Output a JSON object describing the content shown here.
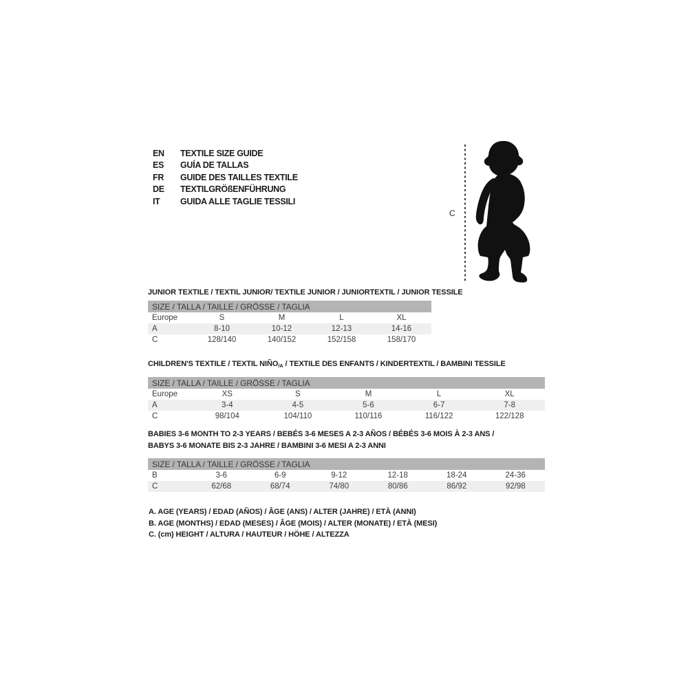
{
  "colors": {
    "background": "#ffffff",
    "band_bg": "#b4b4b4",
    "alt_row_bg": "#efefef",
    "title_text": "#1c1c1c",
    "table_text": "#3c3c3c",
    "silhouette": "#111111"
  },
  "languages": {
    "items": [
      {
        "code": "EN",
        "label": "TEXTILE SIZE GUIDE"
      },
      {
        "code": "ES",
        "label": "GUÍA DE TALLAS"
      },
      {
        "code": "FR",
        "label": "GUIDE DES TAILLES TEXTILE"
      },
      {
        "code": "DE",
        "label": "TEXTILGRÖßENFÜHRUNG"
      },
      {
        "code": "IT",
        "label": "GUIDA ALLE TAGLIE TESSILI"
      }
    ]
  },
  "figure": {
    "silhouette": "toddler-silhouette",
    "height_label": "C"
  },
  "size_tables": [
    {
      "name": "size-table-junior",
      "title_lines": [
        [
          {
            "text": "JUNIOR TEXTILE / TEXTIL JUNIOR/ TEXTILE JUNIOR / JUNIORTEXTIL / JUNIOR TESSILE"
          }
        ]
      ],
      "band_label": "SIZE / TALLA / TAILLE / GRÖSSE / TAGLIA",
      "rows": [
        {
          "label": "Europe",
          "cells": [
            "S",
            "M",
            "L",
            "XL"
          ]
        },
        {
          "label": "A",
          "cells": [
            "8-10",
            "10-12",
            "12-13",
            "14-16"
          ]
        },
        {
          "label": "C",
          "cells": [
            "128/140",
            "140/152",
            "152/158",
            "158/170"
          ]
        }
      ]
    },
    {
      "name": "size-table-children",
      "title_lines": [
        [
          {
            "text": "CHILDREN'S TEXTILE / TEXTIL NIÑO"
          },
          {
            "text": "/A",
            "sub": true
          },
          {
            "text": " / TEXTILE DES ENFANTS / KINDERTEXTIL / BAMBINI TESSILE"
          }
        ]
      ],
      "band_label": "SIZE / TALLA / TAILLE / GRÖSSE / TAGLIA",
      "rows": [
        {
          "label": "Europe",
          "cells": [
            "XS",
            "S",
            "M",
            "L",
            "XL"
          ]
        },
        {
          "label": "A",
          "cells": [
            "3-4",
            "4-5",
            "5-6",
            "6-7",
            "7-8"
          ]
        },
        {
          "label": "C",
          "cells": [
            "98/104",
            "104/110",
            "110/116",
            "116/122",
            "122/128"
          ]
        }
      ]
    },
    {
      "name": "size-table-babies",
      "title_lines": [
        [
          {
            "text": "BABIES 3-6 MONTH TO 2-3 YEARS / BEBÉS 3-6 MESES A 2-3 AÑOS / BÉBÉS 3-6 MOIS À 2-3 ANS /"
          }
        ],
        [
          {
            "text": "BABYS 3-6 MONATE BIS 2-3 JAHRE / BAMBINI 3-6 MESI A 2-3 ANNI"
          }
        ]
      ],
      "band_label": "SIZE / TALLA / TAILLE / GRÖSSE / TAGLIA",
      "rows": [
        {
          "label": "B",
          "cells": [
            "3-6",
            "6-9",
            "9-12",
            "12-18",
            "18-24",
            "24-36"
          ]
        },
        {
          "label": "C",
          "cells": [
            "62/68",
            "68/74",
            "74/80",
            "80/86",
            "86/92",
            "92/98"
          ]
        }
      ]
    }
  ],
  "legend": {
    "lines": [
      "A. AGE (YEARS) / EDAD (AÑOS) / ÂGE (ANS) / ALTER (JAHRE) / ETÀ (ANNI)",
      "B. AGE (MONTHS) / EDAD (MESES) / ÂGE (MOIS) / ALTER (MONATE) / ETÀ (MESI)",
      "C. (cm) HEIGHT / ALTURA / HAUTEUR / HÖHE / ALTEZZA"
    ]
  }
}
